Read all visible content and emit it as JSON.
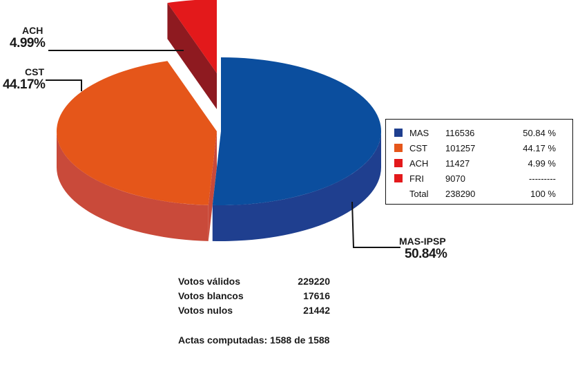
{
  "chart_data": {
    "type": "pie",
    "style": "3d-exploded",
    "slices": [
      {
        "name": "MAS",
        "label": "MAS-IPSP",
        "votes": 116536,
        "percent": 50.84,
        "percent_text": "50.84 %",
        "callout_pct": "50.84%",
        "color": "#0b4e9e",
        "side_color": "#1f3f8f"
      },
      {
        "name": "CST",
        "label": "CST",
        "votes": 101257,
        "percent": 44.17,
        "percent_text": "44.17 %",
        "callout_pct": "44.17%",
        "color": "#e5561a",
        "side_color": "#c94a3a"
      },
      {
        "name": "ACH",
        "label": "ACH",
        "votes": 11427,
        "percent": 4.99,
        "percent_text": "4.99 %",
        "callout_pct": "4.99%",
        "color": "#e3191b",
        "side_color": "#8e1a20"
      }
    ],
    "legend": [
      {
        "name": "MAS",
        "votes": "116536",
        "pct": "50.84 %",
        "color": "#1f3f8f"
      },
      {
        "name": "CST",
        "votes": "101257",
        "pct": "44.17 %",
        "color": "#e5561a"
      },
      {
        "name": "ACH",
        "votes": "11427",
        "pct": "4.99 %",
        "color": "#e3191b"
      },
      {
        "name": "FRI",
        "votes": "9070",
        "pct": "---------",
        "color": "#e3191b"
      },
      {
        "name": "Total",
        "votes": "238290",
        "pct": "100 %",
        "color": ""
      }
    ],
    "legend_placement": "right"
  },
  "totals": [
    {
      "label": "Votos válidos",
      "value": "229220"
    },
    {
      "label": "Votos blancos",
      "value": "17616"
    },
    {
      "label": "Votos nulos",
      "value": "21442"
    }
  ],
  "actas": "Actas computadas: 1588 de 1588"
}
